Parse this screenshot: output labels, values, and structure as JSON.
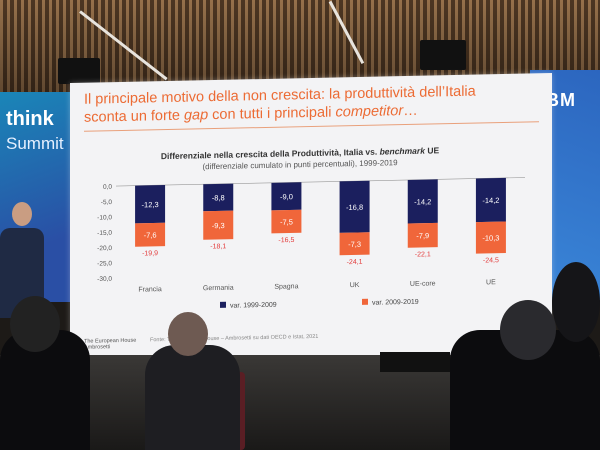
{
  "slide": {
    "title_line1": "Il principale motivo della non crescita: la produttività dell’Italia",
    "title_line2_a": "sconta un forte ",
    "title_line2_em1": "gap",
    "title_line2_b": " con tutti i principali ",
    "title_line2_em2": "competitor",
    "title_line2_c": "…",
    "footer_org_line1": "The European House",
    "footer_org_line2": "Ambrosetti",
    "source_text": "Fonte: The European House – Ambrosetti su dati OECD e Istat, 2021"
  },
  "venue": {
    "left_brand_line1": "think",
    "left_brand_line2": "Summit",
    "right_logo": "IBM"
  },
  "chart_data": {
    "type": "bar",
    "stacked": true,
    "title_a": "Differenziale nella crescita della Produttività, Italia vs. ",
    "title_em": "benchmark",
    "title_b": " UE",
    "subtitle": "(differenziale cumulato in punti percentuali), 1999-2019",
    "categories": [
      "Francia",
      "Germania",
      "Spagna",
      "UK",
      "UE-core",
      "UE"
    ],
    "series": [
      {
        "name": "var. 1999-2009",
        "color": "#1b1f5e",
        "values": [
          -12.3,
          -8.8,
          -9.0,
          -16.8,
          -14.2,
          -14.2
        ],
        "labels": [
          "-12,3",
          "-8,8",
          "-9,0",
          "-16,8",
          "-14,2",
          "-14,2"
        ]
      },
      {
        "name": "var. 2009-2019",
        "color": "#f0663a",
        "values": [
          -7.6,
          -9.3,
          -7.5,
          -7.3,
          -7.9,
          -10.3
        ],
        "labels": [
          "-7,6",
          "-9,3",
          "-7,5",
          "-7,3",
          "-7,9",
          "-10,3"
        ]
      }
    ],
    "totals": [
      -19.9,
      -18.1,
      -16.5,
      -24.1,
      -22.1,
      -24.5
    ],
    "total_labels": [
      "-19,9",
      "-18,1",
      "-16,5",
      "-24,1",
      "-22,1",
      "-24,5"
    ],
    "total_color": "#e33a3a",
    "yticks": [
      "0,0",
      "-5,0",
      "-10,0",
      "-15,0",
      "-20,0",
      "-25,0",
      "-30,0"
    ],
    "ytick_values": [
      0,
      -5,
      -10,
      -15,
      -20,
      -25,
      -30
    ],
    "ylim": [
      -30,
      0
    ],
    "legend": "bottom"
  }
}
